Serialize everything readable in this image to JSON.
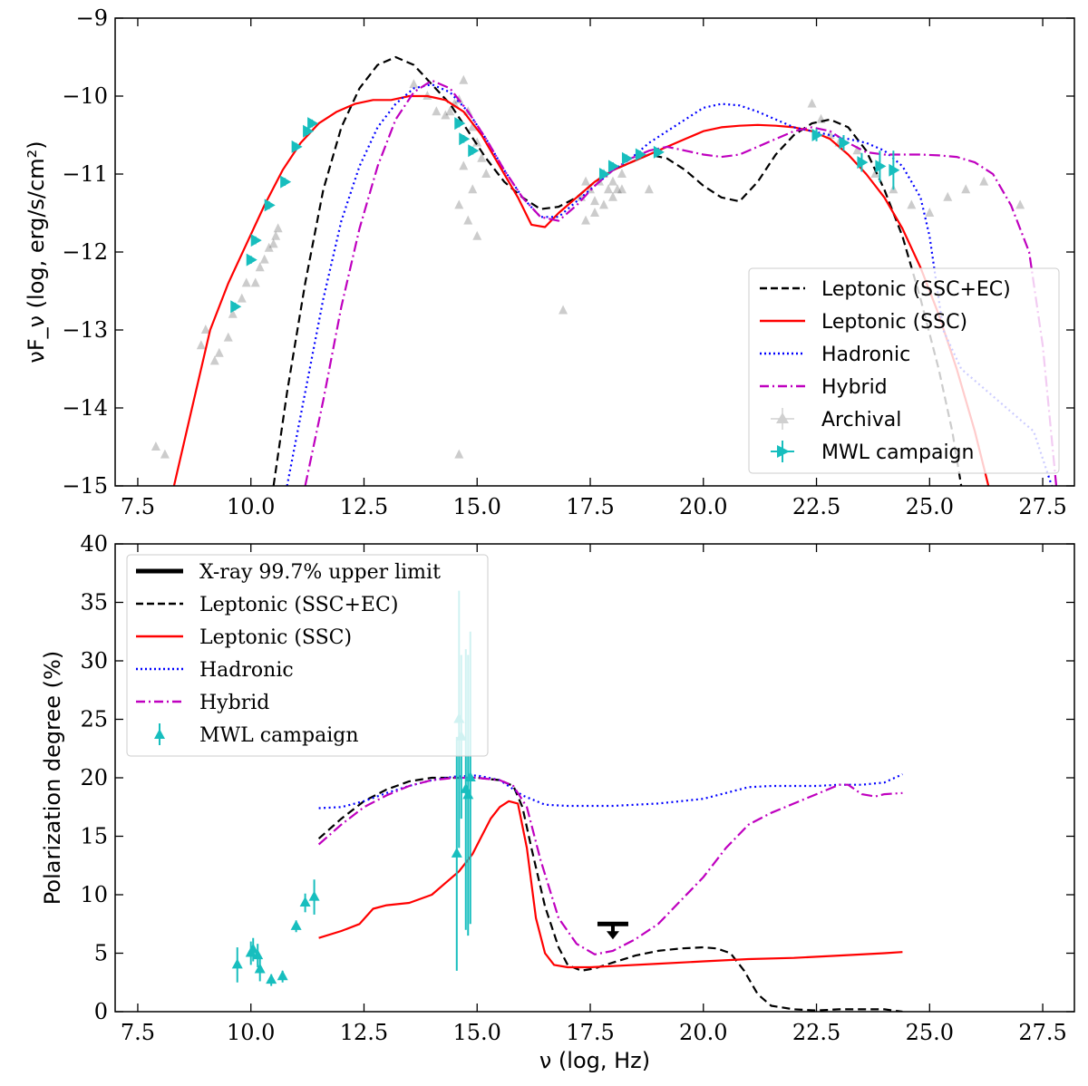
{
  "colors": {
    "ssc_ec": "#000000",
    "ssc": "#ff0000",
    "hadronic": "#0000ff",
    "hybrid": "#bf00bf",
    "mwl": "#17bebe",
    "archival": "#000000"
  },
  "chart_data": [
    {
      "type": "line",
      "xlim": [
        7,
        28.2
      ],
      "ylim": [
        -15,
        -9
      ],
      "ylabel": "νF_ν (log, erg/s/cm²)",
      "xlabel": "",
      "xticks": [
        "7.5",
        "10.0",
        "12.5",
        "15.0",
        "17.5",
        "20.0",
        "22.5",
        "25.0",
        "27.5"
      ],
      "xtick_values": [
        7.5,
        10,
        12.5,
        15,
        17.5,
        20,
        22.5,
        25,
        27.5
      ],
      "yticks": [
        "−15",
        "−14",
        "−13",
        "−12",
        "−11",
        "−10",
        "−9"
      ],
      "ytick_values": [
        -15,
        -14,
        -13,
        -12,
        -11,
        -10,
        -9
      ],
      "legend": {
        "position": "bottom-right",
        "entries": [
          "Leptonic (SSC+EC)",
          "Leptonic (SSC)",
          "Hadronic",
          "Hybrid",
          "Archival",
          "MWL campaign"
        ]
      },
      "series": [
        {
          "name": "Leptonic (SSC+EC)",
          "style": "dashed",
          "color_key": "ssc_ec",
          "x": [
            10.5,
            10.8,
            11.2,
            11.6,
            12.0,
            12.4,
            12.8,
            13.2,
            13.6,
            14.0,
            14.4,
            14.8,
            15.2,
            15.6,
            16.0,
            16.4,
            16.8,
            17.2,
            17.6,
            18.0,
            18.4,
            18.8,
            19.2,
            19.6,
            20.0,
            20.4,
            20.8,
            21.2,
            21.6,
            22.0,
            22.4,
            22.8,
            23.2,
            23.6,
            24.0,
            24.4,
            24.8,
            25.2,
            25.5,
            25.7
          ],
          "y": [
            -15,
            -13.8,
            -12.4,
            -11.2,
            -10.4,
            -9.9,
            -9.6,
            -9.5,
            -9.6,
            -9.85,
            -10.1,
            -10.45,
            -10.8,
            -11.1,
            -11.3,
            -11.45,
            -11.42,
            -11.3,
            -11.1,
            -10.95,
            -10.85,
            -10.75,
            -10.8,
            -10.95,
            -11.15,
            -11.3,
            -11.35,
            -11.1,
            -10.75,
            -10.5,
            -10.35,
            -10.3,
            -10.4,
            -10.7,
            -11.2,
            -11.8,
            -12.6,
            -13.5,
            -14.3,
            -15
          ]
        },
        {
          "name": "Leptonic (SSC)",
          "style": "solid",
          "color_key": "ssc",
          "x": [
            8.3,
            8.7,
            9.1,
            9.5,
            9.9,
            10.3,
            10.7,
            11.1,
            11.5,
            11.9,
            12.3,
            12.7,
            13.1,
            13.5,
            13.9,
            14.3,
            14.7,
            15.1,
            15.5,
            15.9,
            16.2,
            16.5,
            16.8,
            17.2,
            17.6,
            18.0,
            18.4,
            18.8,
            19.2,
            19.6,
            20.0,
            20.4,
            20.8,
            21.2,
            21.6,
            22.0,
            22.4,
            22.8,
            23.2,
            23.6,
            24.0,
            24.4,
            24.8,
            25.2,
            25.6,
            26.0,
            26.3
          ],
          "y": [
            -15,
            -14,
            -13,
            -12.4,
            -11.9,
            -11.4,
            -10.95,
            -10.6,
            -10.35,
            -10.2,
            -10.1,
            -10.05,
            -10.05,
            -10.0,
            -10.0,
            -10.05,
            -10.2,
            -10.5,
            -10.9,
            -11.3,
            -11.65,
            -11.68,
            -11.5,
            -11.3,
            -11.1,
            -10.95,
            -10.85,
            -10.75,
            -10.65,
            -10.55,
            -10.45,
            -10.4,
            -10.38,
            -10.37,
            -10.38,
            -10.4,
            -10.45,
            -10.55,
            -10.75,
            -11.0,
            -11.3,
            -11.7,
            -12.2,
            -12.8,
            -13.5,
            -14.3,
            -15
          ]
        },
        {
          "name": "Hadronic",
          "style": "dotted",
          "color_key": "hadronic",
          "x": [
            10.8,
            11.2,
            11.6,
            12.0,
            12.4,
            12.8,
            13.2,
            13.6,
            14.0,
            14.4,
            14.8,
            15.2,
            15.6,
            16.0,
            16.4,
            16.8,
            17.2,
            17.6,
            18.0,
            18.4,
            18.8,
            19.2,
            19.6,
            20.0,
            20.4,
            20.8,
            21.2,
            21.6,
            22.0,
            22.4,
            22.8,
            23.2,
            23.6,
            24.0,
            24.4,
            24.8,
            25.0,
            25.3,
            25.7,
            26.1,
            26.5,
            26.9,
            27.3,
            27.7
          ],
          "y": [
            -15,
            -13.8,
            -12.6,
            -11.6,
            -10.9,
            -10.4,
            -10.1,
            -9.9,
            -9.85,
            -9.95,
            -10.2,
            -10.55,
            -10.95,
            -11.3,
            -11.55,
            -11.55,
            -11.35,
            -11.15,
            -10.95,
            -10.8,
            -10.6,
            -10.45,
            -10.3,
            -10.15,
            -10.1,
            -10.12,
            -10.2,
            -10.3,
            -10.4,
            -10.45,
            -10.5,
            -10.55,
            -10.6,
            -10.7,
            -10.9,
            -11.3,
            -11.8,
            -13.0,
            -13.5,
            -13.7,
            -13.9,
            -14.1,
            -14.3,
            -15
          ]
        },
        {
          "name": "Hybrid",
          "style": "dashdot",
          "color_key": "hybrid",
          "x": [
            11.2,
            11.6,
            12.0,
            12.4,
            12.8,
            13.2,
            13.6,
            14.0,
            14.4,
            14.8,
            15.2,
            15.6,
            16.0,
            16.4,
            16.8,
            17.2,
            17.6,
            18.0,
            18.4,
            18.8,
            19.2,
            19.6,
            20.0,
            20.4,
            20.8,
            21.2,
            21.6,
            22.0,
            22.4,
            22.8,
            23.2,
            23.6,
            24.0,
            24.4,
            24.8,
            25.2,
            25.6,
            26.0,
            26.4,
            26.8,
            27.2,
            27.5,
            27.8
          ],
          "y": [
            -15,
            -13.9,
            -12.7,
            -11.7,
            -10.9,
            -10.3,
            -9.95,
            -9.8,
            -9.9,
            -10.2,
            -10.55,
            -10.95,
            -11.3,
            -11.55,
            -11.6,
            -11.4,
            -11.15,
            -10.95,
            -10.8,
            -10.7,
            -10.65,
            -10.7,
            -10.75,
            -10.78,
            -10.75,
            -10.65,
            -10.55,
            -10.45,
            -10.4,
            -10.45,
            -10.6,
            -10.72,
            -10.75,
            -10.75,
            -10.75,
            -10.76,
            -10.78,
            -10.85,
            -11.0,
            -11.4,
            -12.0,
            -13.2,
            -15
          ]
        }
      ],
      "mwl_points": {
        "name": "MWL campaign",
        "x": [
          9.65,
          10.0,
          10.1,
          10.4,
          10.75,
          11.0,
          11.25,
          11.35,
          14.6,
          14.7,
          14.9,
          17.8,
          18.0,
          18.3,
          18.6,
          19.0,
          22.5,
          23.1,
          23.5,
          23.9,
          24.2
        ],
        "y": [
          -12.7,
          -12.1,
          -11.85,
          -11.4,
          -11.1,
          -10.65,
          -10.45,
          -10.35,
          -10.35,
          -10.55,
          -10.7,
          -11.0,
          -10.9,
          -10.8,
          -10.75,
          -10.72,
          -10.5,
          -10.6,
          -10.85,
          -10.9,
          -10.95
        ],
        "yerr": [
          0.05,
          0.05,
          0.05,
          0.05,
          0.05,
          0.05,
          0.05,
          0.05,
          0.05,
          0.05,
          0.05,
          0.05,
          0.05,
          0.05,
          0.05,
          0.05,
          0.08,
          0.1,
          0.12,
          0.2,
          0.25
        ]
      },
      "archival_points": {
        "name": "Archival",
        "x": [
          7.9,
          8.1,
          8.9,
          9.0,
          9.2,
          9.3,
          9.5,
          9.6,
          9.8,
          9.9,
          10.1,
          10.2,
          10.3,
          10.4,
          10.5,
          10.55,
          10.6,
          13.6,
          13.9,
          14.1,
          14.3,
          14.4,
          14.5,
          14.6,
          14.7,
          14.8,
          14.9,
          15.0,
          15.1,
          15.2,
          14.6,
          14.8,
          15.0,
          14.7,
          14.9,
          16.9,
          17.3,
          17.4,
          17.5,
          17.6,
          17.7,
          17.8,
          17.9,
          18.0,
          18.1,
          18.2,
          17.4,
          17.6,
          17.8,
          18.0,
          18.2,
          18.8,
          22.4,
          22.6,
          22.8,
          23.0,
          23.4,
          23.8,
          24.2,
          24.6,
          25.0,
          25.4,
          25.8,
          26.2,
          27.0,
          14.6
        ],
        "y": [
          -14.5,
          -14.6,
          -13.2,
          -13.0,
          -13.4,
          -13.3,
          -13.1,
          -12.8,
          -12.6,
          -12.4,
          -12.4,
          -12.2,
          -12.1,
          -11.95,
          -11.9,
          -11.8,
          -11.7,
          -9.85,
          -10.0,
          -10.2,
          -10.25,
          -10.2,
          -10.1,
          -10.05,
          -9.8,
          -10.2,
          -10.4,
          -10.6,
          -10.8,
          -11.0,
          -11.4,
          -11.6,
          -11.8,
          -10.9,
          -11.2,
          -12.75,
          -11.3,
          -11.1,
          -11.2,
          -11.35,
          -11.1,
          -11.0,
          -11.2,
          -11.1,
          -11.2,
          -11.0,
          -11.6,
          -11.5,
          -11.4,
          -11.3,
          -11.2,
          -11.2,
          -10.1,
          -10.3,
          -10.5,
          -10.6,
          -10.7,
          -11.0,
          -11.2,
          -11.4,
          -11.5,
          -11.3,
          -11.2,
          -11.1,
          -11.4,
          -14.6
        ]
      }
    },
    {
      "type": "line",
      "xlim": [
        7,
        28.2
      ],
      "ylim": [
        0,
        40
      ],
      "xlabel": "ν (log, Hz)",
      "ylabel": "Polarization degree (%)",
      "xticks": [
        "7.5",
        "10.0",
        "12.5",
        "15.0",
        "17.5",
        "20.0",
        "22.5",
        "25.0",
        "27.5"
      ],
      "xtick_values": [
        7.5,
        10,
        12.5,
        15,
        17.5,
        20,
        22.5,
        25,
        27.5
      ],
      "yticks": [
        "0",
        "5",
        "10",
        "15",
        "20",
        "25",
        "30",
        "35",
        "40"
      ],
      "ytick_values": [
        0,
        5,
        10,
        15,
        20,
        25,
        30,
        35,
        40
      ],
      "legend": {
        "position": "top-left",
        "entries": [
          "X-ray 99.7% upper limit",
          "Leptonic (SSC+EC)",
          "Leptonic (SSC)",
          "Hadronic",
          "Hybrid",
          "MWL campaign"
        ]
      },
      "series": [
        {
          "name": "Leptonic (SSC+EC)",
          "style": "dashed",
          "color_key": "ssc_ec",
          "x": [
            11.5,
            12.0,
            12.5,
            13.0,
            13.5,
            14.0,
            14.5,
            15.0,
            15.5,
            15.8,
            16.0,
            16.2,
            16.5,
            16.8,
            17.0,
            17.3,
            17.6,
            18.0,
            18.5,
            19.0,
            19.5,
            20.0,
            20.3,
            20.6,
            20.9,
            21.2,
            21.5,
            22.0,
            22.5,
            23.0,
            23.5,
            24.0,
            24.4
          ],
          "y": [
            14.8,
            16.5,
            18.0,
            19.0,
            19.7,
            20.0,
            20.0,
            20.0,
            19.8,
            19.3,
            17.5,
            14.0,
            9.0,
            5.5,
            4.0,
            3.5,
            3.7,
            4.2,
            4.8,
            5.2,
            5.4,
            5.5,
            5.4,
            5.0,
            3.5,
            1.5,
            0.5,
            0.2,
            0.1,
            0.2,
            0.2,
            0.2,
            0.0
          ]
        },
        {
          "name": "Leptonic (SSC)",
          "style": "solid",
          "color_key": "ssc",
          "x": [
            11.5,
            12.0,
            12.4,
            12.7,
            13.0,
            13.5,
            14.0,
            14.3,
            14.6,
            14.9,
            15.1,
            15.3,
            15.5,
            15.7,
            15.9,
            16.1,
            16.3,
            16.5,
            16.7,
            17.0,
            17.5,
            18.0,
            19.0,
            20.0,
            21.0,
            22.0,
            23.0,
            24.0,
            24.4
          ],
          "y": [
            6.3,
            6.9,
            7.5,
            8.8,
            9.1,
            9.3,
            10.0,
            11.0,
            12.0,
            13.5,
            15.0,
            16.5,
            17.5,
            18.0,
            17.8,
            14.0,
            8.0,
            5.0,
            4.0,
            3.8,
            3.8,
            3.9,
            4.1,
            4.3,
            4.5,
            4.6,
            4.8,
            5.0,
            5.1
          ]
        },
        {
          "name": "Hadronic",
          "style": "dotted",
          "color_key": "hadronic",
          "x": [
            11.5,
            12.0,
            12.5,
            13.0,
            13.5,
            14.0,
            14.5,
            15.0,
            15.5,
            16.0,
            16.5,
            17.0,
            18.0,
            19.0,
            20.0,
            20.5,
            21.0,
            21.5,
            22.0,
            22.5,
            23.0,
            23.5,
            24.0,
            24.4
          ],
          "y": [
            17.4,
            17.5,
            18.0,
            18.7,
            19.3,
            19.8,
            20.1,
            20.2,
            19.8,
            18.5,
            17.7,
            17.6,
            17.6,
            17.8,
            18.2,
            18.7,
            19.2,
            19.3,
            19.3,
            19.3,
            19.4,
            19.4,
            19.6,
            20.3
          ]
        },
        {
          "name": "Hybrid",
          "style": "dashdot",
          "color_key": "hybrid",
          "x": [
            11.5,
            12.0,
            12.5,
            13.0,
            13.5,
            14.0,
            14.5,
            15.0,
            15.5,
            15.8,
            16.1,
            16.4,
            16.8,
            17.2,
            17.6,
            18.0,
            18.5,
            19.0,
            19.5,
            20.0,
            20.5,
            21.0,
            21.5,
            22.0,
            22.5,
            23.0,
            23.2,
            23.5,
            23.8,
            24.0,
            24.4
          ],
          "y": [
            14.3,
            16.0,
            17.5,
            18.5,
            19.3,
            19.8,
            20.0,
            20.0,
            19.8,
            19.3,
            17.5,
            13.0,
            8.0,
            5.8,
            4.9,
            5.2,
            6.2,
            7.5,
            9.5,
            11.5,
            14.0,
            16.0,
            17.0,
            17.8,
            18.6,
            19.4,
            19.4,
            18.6,
            18.4,
            18.6,
            18.7
          ]
        }
      ],
      "mwl_points": {
        "name": "MWL campaign",
        "x": [
          9.7,
          10.0,
          10.05,
          10.15,
          10.2,
          10.45,
          10.7,
          11.0,
          11.2,
          11.4,
          14.55,
          14.6,
          14.65,
          14.75,
          14.8,
          14.85
        ],
        "y": [
          4.0,
          5.0,
          5.3,
          4.8,
          3.6,
          2.7,
          3.0,
          7.3,
          9.3,
          9.8,
          13.5,
          25.0,
          23.5,
          19.0,
          18.5,
          20.0
        ],
        "yerr": [
          1.5,
          1.0,
          1.0,
          1.0,
          1.0,
          0.5,
          0.5,
          0.5,
          0.8,
          1.5,
          10.0,
          11.0,
          7.0,
          12.0,
          12.0,
          12.5
        ]
      },
      "upper_limit": {
        "name": "X-ray 99.7% upper limit",
        "x": 18.0,
        "y": 7.5
      }
    }
  ]
}
